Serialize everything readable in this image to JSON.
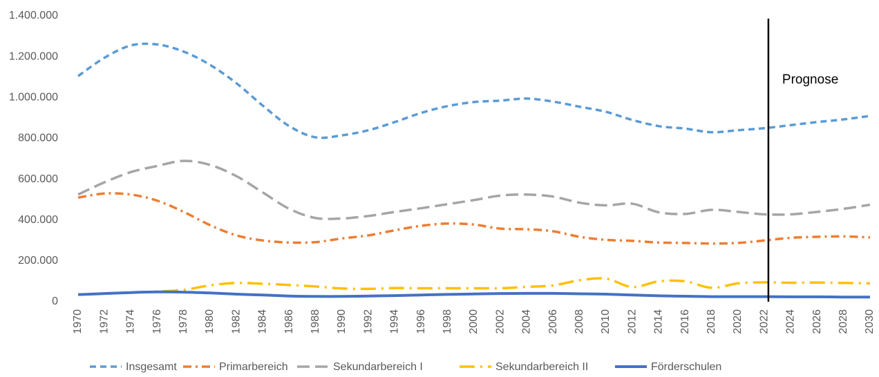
{
  "chart_data": {
    "type": "line",
    "x": [
      1970,
      1972,
      1974,
      1976,
      1978,
      1980,
      1982,
      1984,
      1986,
      1988,
      1990,
      1992,
      1994,
      1996,
      1998,
      2000,
      2002,
      2004,
      2006,
      2008,
      2010,
      2012,
      2014,
      2016,
      2018,
      2020,
      2022,
      2024,
      2026,
      2028,
      2030
    ],
    "xlim": [
      1970,
      2030
    ],
    "xticks": [
      1970,
      1972,
      1974,
      1976,
      1978,
      1980,
      1982,
      1984,
      1986,
      1988,
      1990,
      1992,
      1994,
      1996,
      1998,
      2000,
      2002,
      2004,
      2006,
      2008,
      2010,
      2012,
      2014,
      2016,
      2018,
      2020,
      2022,
      2024,
      2026,
      2028,
      2030
    ],
    "ylim": [
      0,
      1400000
    ],
    "yticks": [
      0,
      {
        "value": 200000,
        "label": "200.000"
      },
      {
        "value": 400000,
        "label": "400.000"
      },
      {
        "value": 600000,
        "label": "600.000"
      },
      {
        "value": 800000,
        "label": "800.000"
      },
      {
        "value": 1000000,
        "label": "1.000.000"
      },
      {
        "value": 1200000,
        "label": "1.200.000"
      },
      {
        "value": 1400000,
        "label": "1.400.000"
      }
    ],
    "grid": false,
    "legend": "bottom",
    "vline": {
      "x": 2022.3,
      "label": "Prognose"
    },
    "series": [
      {
        "name": "Insgesamt",
        "color": "#5b9bd5",
        "dash": "9 6",
        "width": 3.5,
        "values": [
          1105000,
          1195000,
          1255000,
          1260000,
          1225000,
          1160000,
          1070000,
          960000,
          860000,
          805000,
          815000,
          840000,
          880000,
          925000,
          958000,
          978000,
          985000,
          995000,
          980000,
          955000,
          930000,
          890000,
          860000,
          848000,
          830000,
          840000,
          850000,
          865000,
          880000,
          893000,
          910000
        ]
      },
      {
        "name": "Primarbereich",
        "color": "#ed7d31",
        "dash": "12 6 3 6",
        "width": 3.5,
        "values": [
          510000,
          530000,
          525000,
          495000,
          440000,
          375000,
          325000,
          300000,
          290000,
          292000,
          310000,
          325000,
          350000,
          372000,
          383000,
          378000,
          358000,
          355000,
          345000,
          318000,
          303000,
          298000,
          290000,
          288000,
          285000,
          288000,
          300000,
          313000,
          318000,
          320000,
          315000
        ]
      },
      {
        "name": "Sekundarbereich I",
        "color": "#a5a5a5",
        "dash": "18 8",
        "width": 3.5,
        "values": [
          525000,
          585000,
          635000,
          665000,
          690000,
          670000,
          615000,
          535000,
          455000,
          410000,
          408000,
          420000,
          440000,
          458000,
          478000,
          498000,
          520000,
          525000,
          515000,
          485000,
          472000,
          480000,
          438000,
          430000,
          450000,
          440000,
          428000,
          428000,
          440000,
          455000,
          475000
        ]
      },
      {
        "name": "Sekundarbereich II",
        "color": "#ffc000",
        "dash": "22 8 3 8",
        "width": 3.5,
        "values": [
          35000,
          40000,
          45000,
          50000,
          58000,
          80000,
          92000,
          88000,
          82000,
          75000,
          65000,
          63000,
          67000,
          66000,
          66000,
          66000,
          66000,
          73000,
          80000,
          105000,
          113000,
          72000,
          100000,
          100000,
          68000,
          90000,
          95000,
          93000,
          94000,
          92000,
          90000
        ]
      },
      {
        "name": "Förderschulen",
        "color": "#4472c4",
        "dash": "none",
        "width": 4,
        "values": [
          35000,
          40000,
          45000,
          48000,
          47000,
          43000,
          37000,
          33000,
          28000,
          26000,
          26000,
          28000,
          30000,
          33000,
          36000,
          38000,
          40000,
          41000,
          41000,
          39000,
          37000,
          33000,
          29000,
          27000,
          25000,
          25000,
          25000,
          24000,
          24000,
          23000,
          23000
        ]
      }
    ]
  }
}
